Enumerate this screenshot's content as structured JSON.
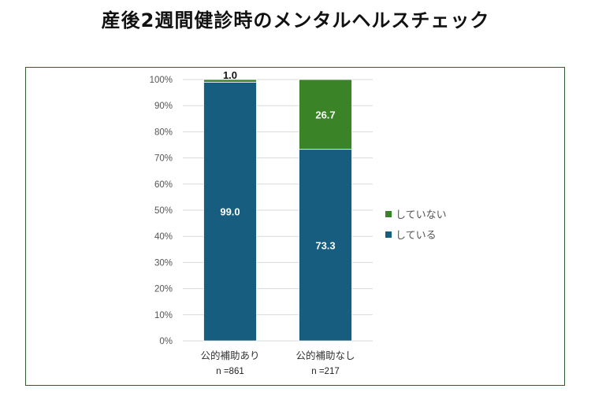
{
  "title": "産後2週間健診時のメンタルヘルスチェック",
  "colors": {
    "している": "#175d80",
    "していない": "#3a8427",
    "frame": "#2f5e32",
    "grid": "#d9d9d9"
  },
  "chart_data": {
    "type": "bar",
    "stacked": true,
    "categories": [
      "公的補助あり",
      "公的補助なし"
    ],
    "n_labels": [
      "n =861",
      "n =217"
    ],
    "series": [
      {
        "name": "している",
        "values": [
          99.0,
          73.3
        ]
      },
      {
        "name": "していない",
        "values": [
          1.0,
          26.7
        ]
      }
    ],
    "ylim": [
      0,
      100
    ],
    "yticks": [
      "0%",
      "10%",
      "20%",
      "30%",
      "40%",
      "50%",
      "60%",
      "70%",
      "80%",
      "90%",
      "100%"
    ],
    "grid": true,
    "legend": {
      "position": "right",
      "entries": [
        "していない",
        "している"
      ]
    }
  }
}
